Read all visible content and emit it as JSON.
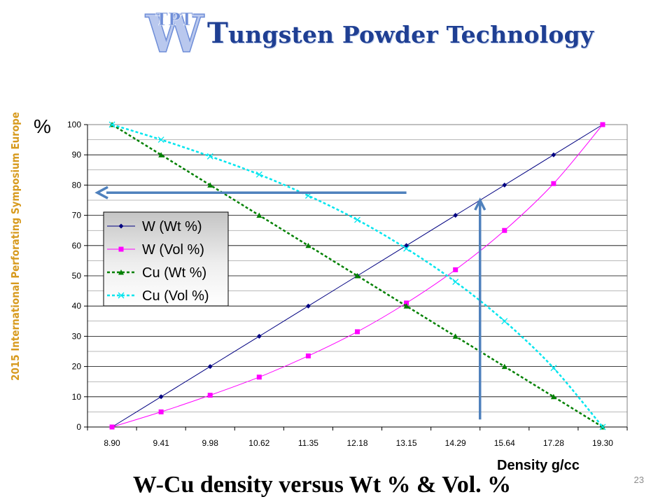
{
  "logo": {
    "mark_top": "TPT",
    "mark_letter": "W",
    "brand_first_letter": "T",
    "brand_rest": "ungsten Powder Technology",
    "brand_color": "#1f3f93",
    "mark_color": "#6f8ed8"
  },
  "side_banner": {
    "text": "2015 International Perforating Symposium Europe",
    "color": "#d79a1e"
  },
  "slide_title": "W-Cu density versus Wt % & Vol. %",
  "page_number": "23",
  "arrows": {
    "color": "#4f81bd",
    "horizontal": {
      "direction": "left",
      "from_x": "13.15",
      "to": "y-axis",
      "y_value": 77.5
    },
    "vertical": {
      "direction": "up",
      "x_position_between": [
        "14.29",
        "15.64"
      ],
      "from_y_value": 2.5,
      "to_y_value": 75
    }
  },
  "chart_data": {
    "type": "line",
    "title": "",
    "ylabel": "%",
    "xlabel": "Density g/cc",
    "categories": [
      "8.90",
      "9.41",
      "9.98",
      "10.62",
      "11.35",
      "12.18",
      "13.15",
      "14.29",
      "15.64",
      "17.28",
      "19.30"
    ],
    "ylim": [
      0,
      100
    ],
    "yticks": [
      0,
      10,
      20,
      30,
      40,
      50,
      60,
      70,
      80,
      90,
      100
    ],
    "grid": true,
    "minor_grid": true,
    "plot_background": "#ffffff",
    "legend_position": "center-left",
    "series": [
      {
        "name": "W (Wt %)",
        "color": "#000080",
        "dash": "solid",
        "marker": "diamond",
        "values": [
          0,
          10,
          20,
          30,
          40,
          50,
          60,
          70,
          80,
          90,
          100
        ]
      },
      {
        "name": "W (Vol %)",
        "color": "#ff00ff",
        "dash": "solid",
        "marker": "square",
        "values": [
          0,
          5,
          10.5,
          16.5,
          23.5,
          31.5,
          41,
          52,
          65,
          80.5,
          100
        ]
      },
      {
        "name": "Cu (Wt %)",
        "color": "#008000",
        "dash": "dashed",
        "marker": "triangle",
        "values": [
          100,
          90,
          80,
          70,
          60,
          50,
          40,
          30,
          20,
          10,
          0
        ]
      },
      {
        "name": "Cu (Vol %)",
        "color": "#00e5ee",
        "dash": "dashed",
        "marker": "x",
        "values": [
          100,
          95,
          89.5,
          83.5,
          76.5,
          68.5,
          59,
          48,
          35,
          19.5,
          0
        ]
      }
    ]
  }
}
